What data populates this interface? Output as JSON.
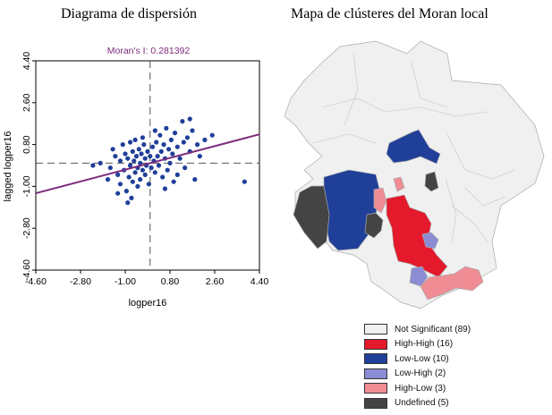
{
  "left_title": "Diagrama de dispersión",
  "right_title": "Mapa de clústeres del Moran local",
  "chart_data": {
    "type": "scatter",
    "title": "Moran's I: 0.281392",
    "xlabel": "logper16",
    "ylabel": "lagged logper16",
    "xlim": [
      -4.6,
      4.4
    ],
    "ylim": [
      -4.6,
      4.4
    ],
    "xticks": [
      "-4.60",
      "-2.80",
      "-1.00",
      "0.80",
      "2.60",
      "4.40"
    ],
    "yticks": [
      "-4.60",
      "-2.80",
      "-1.00",
      "0.80",
      "2.60",
      "4.40"
    ],
    "mean_x": 0.0,
    "mean_y": 0.0,
    "regression": {
      "slope": 0.281392,
      "intercept": 0.0
    },
    "point_color": "#1f3f99",
    "line_color": "#7b2a7c",
    "points": [
      [
        -2.0,
        0.0
      ],
      [
        -1.6,
        -0.2
      ],
      [
        -1.5,
        0.6
      ],
      [
        -1.4,
        0.3
      ],
      [
        -1.3,
        -0.5
      ],
      [
        -1.2,
        0.1
      ],
      [
        -1.2,
        -0.9
      ],
      [
        -1.1,
        0.8
      ],
      [
        -1.05,
        -0.3
      ],
      [
        -1.0,
        0.4
      ],
      [
        -0.95,
        -1.2
      ],
      [
        -0.9,
        0.2
      ],
      [
        -0.85,
        -0.6
      ],
      [
        -0.8,
        0.9
      ],
      [
        -0.8,
        -0.1
      ],
      [
        -0.75,
        -1.5
      ],
      [
        -0.7,
        0.5
      ],
      [
        -0.7,
        -0.8
      ],
      [
        -0.65,
        0.1
      ],
      [
        -0.6,
        -0.4
      ],
      [
        -0.6,
        1.0
      ],
      [
        -0.55,
        0.3
      ],
      [
        -0.5,
        -1.0
      ],
      [
        -0.5,
        -0.2
      ],
      [
        -0.45,
        0.6
      ],
      [
        -0.4,
        0.0
      ],
      [
        -0.4,
        -0.7
      ],
      [
        -0.35,
        0.4
      ],
      [
        -0.3,
        -0.3
      ],
      [
        -0.25,
        0.8
      ],
      [
        -0.2,
        -0.5
      ],
      [
        -0.2,
        0.2
      ],
      [
        -0.15,
        -0.1
      ],
      [
        -0.1,
        0.5
      ],
      [
        -0.05,
        -0.9
      ],
      [
        0.0,
        0.3
      ],
      [
        0.05,
        -0.2
      ],
      [
        0.1,
        0.7
      ],
      [
        0.15,
        0.1
      ],
      [
        0.2,
        -0.4
      ],
      [
        0.25,
        0.9
      ],
      [
        0.3,
        0.3
      ],
      [
        0.35,
        -0.1
      ],
      [
        0.4,
        1.2
      ],
      [
        0.45,
        0.5
      ],
      [
        0.5,
        -0.6
      ],
      [
        0.55,
        0.8
      ],
      [
        0.6,
        0.2
      ],
      [
        0.65,
        1.5
      ],
      [
        0.7,
        -0.3
      ],
      [
        0.75,
        0.6
      ],
      [
        0.8,
        0.0
      ],
      [
        0.85,
        1.0
      ],
      [
        0.9,
        0.4
      ],
      [
        0.95,
        -0.8
      ],
      [
        1.0,
        1.3
      ],
      [
        1.1,
        0.7
      ],
      [
        1.2,
        0.2
      ],
      [
        1.3,
        1.8
      ],
      [
        1.35,
        0.9
      ],
      [
        1.4,
        -0.2
      ],
      [
        1.5,
        1.1
      ],
      [
        1.6,
        0.5
      ],
      [
        1.7,
        1.4
      ],
      [
        1.8,
        -0.7
      ],
      [
        1.9,
        0.8
      ],
      [
        2.0,
        0.3
      ],
      [
        2.2,
        1.0
      ],
      [
        -2.3,
        -0.1
      ],
      [
        -1.7,
        -0.7
      ],
      [
        -0.3,
        1.1
      ],
      [
        0.2,
        1.4
      ],
      [
        1.1,
        -0.5
      ],
      [
        2.5,
        1.2
      ],
      [
        -1.3,
        -1.3
      ],
      [
        0.6,
        -1.1
      ],
      [
        3.8,
        -0.8
      ],
      [
        -0.9,
        -1.7
      ],
      [
        1.6,
        1.9
      ]
    ]
  },
  "map": {
    "legend": [
      {
        "label": "Not Significant (89)",
        "color": "#f0f0f0"
      },
      {
        "label": "High-High (16)",
        "color": "#e4192c"
      },
      {
        "label": "Low-Low (10)",
        "color": "#1f3f99"
      },
      {
        "label": "Low-High (2)",
        "color": "#8c8cd4"
      },
      {
        "label": "High-Low (3)",
        "color": "#f08c94"
      },
      {
        "label": "Undefined (5)",
        "color": "#444444"
      }
    ]
  }
}
